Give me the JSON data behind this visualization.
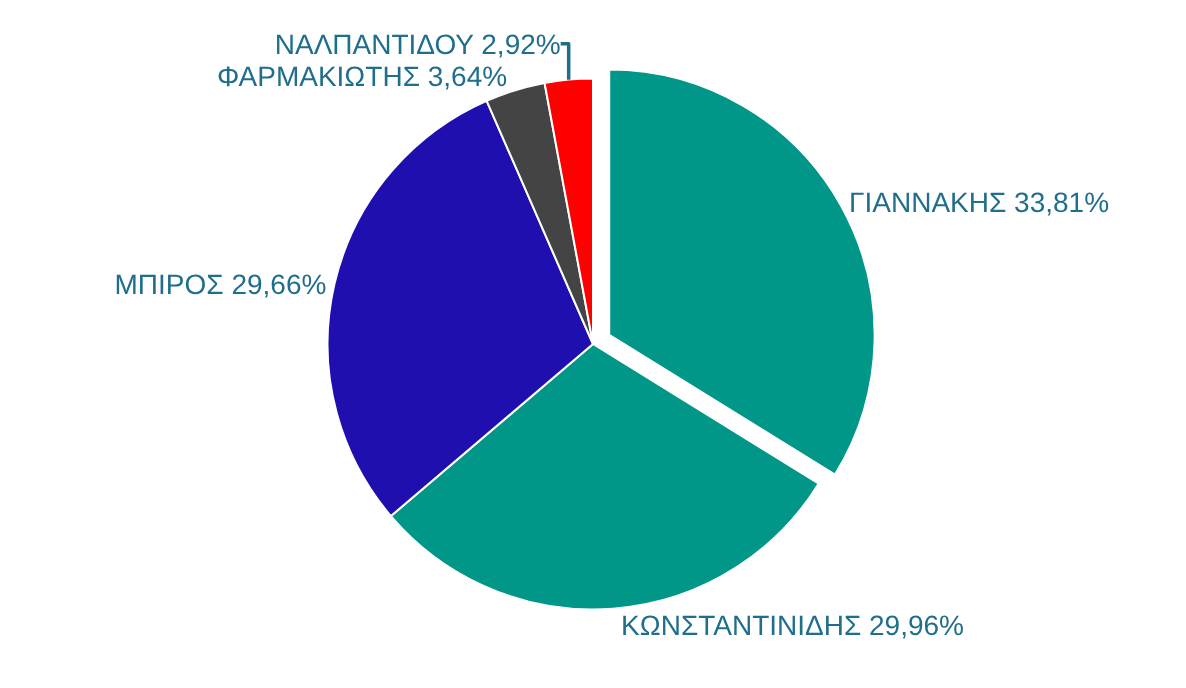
{
  "chart_data": {
    "type": "pie",
    "categories": [
      "ΓΙΑΝΝΑΚΗΣ",
      "ΚΩΝΣΤΑΝΤΙΝΙΔΗΣ",
      "ΜΠΙΡΟΣ",
      "ΦΑΡΜΑΚΙΩΤΗΣ",
      "ΝΑΛΠΑΝΤΙΔΟΥ"
    ],
    "values": [
      33.81,
      29.96,
      29.66,
      3.64,
      2.92
    ],
    "value_labels": [
      "33,81%",
      "29,96%",
      "29,66%",
      "3,64%",
      "2,92%"
    ],
    "colors": [
      "#009688",
      "#009688",
      "#1e0fae",
      "#444444",
      "#ff0000"
    ],
    "legend": false
  }
}
